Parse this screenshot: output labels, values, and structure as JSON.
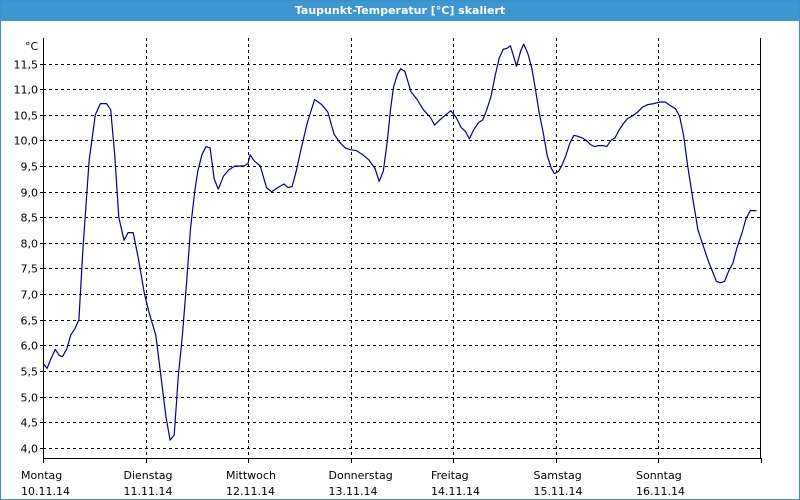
{
  "window": {
    "title": "Taupunkt-Temperatur [°C] skaliert"
  },
  "colors": {
    "titlebar": "#3e96d0",
    "line": "#00008b",
    "grid": "#000000"
  },
  "chart_data": {
    "type": "line",
    "title": "Taupunkt-Temperatur [°C] skaliert",
    "unit": "°C",
    "grid": true,
    "ylim": [
      3.8,
      12.0
    ],
    "y_ticks": [
      "4,0",
      "4,5",
      "5,0",
      "5,5",
      "6,0",
      "6,5",
      "7,0",
      "7,5",
      "8,0",
      "8,5",
      "9,0",
      "9,5",
      "10,0",
      "10,5",
      "11,0",
      "11,5"
    ],
    "y_tick_values": [
      4.0,
      4.5,
      5.0,
      5.5,
      6.0,
      6.5,
      7.0,
      7.5,
      8.0,
      8.5,
      9.0,
      9.5,
      10.0,
      10.5,
      11.0,
      11.5
    ],
    "x_ticks": [
      {
        "day": "Montag",
        "date": "10.11.14"
      },
      {
        "day": "Dienstag",
        "date": "11.11.14"
      },
      {
        "day": "Mittwoch",
        "date": "12.11.14"
      },
      {
        "day": "Donnerstag",
        "date": "13.11.14"
      },
      {
        "day": "Freitag",
        "date": "14.11.14"
      },
      {
        "day": "Samstag",
        "date": "15.11.14"
      },
      {
        "day": "Sonntag",
        "date": "16.11.14"
      }
    ],
    "xlim_days": [
      0,
      7.07
    ],
    "series": [
      {
        "color": "#00008b",
        "points": [
          [
            0.0,
            5.65
          ],
          [
            0.04,
            5.55
          ],
          [
            0.08,
            5.75
          ],
          [
            0.12,
            5.92
          ],
          [
            0.16,
            5.8
          ],
          [
            0.19,
            5.78
          ],
          [
            0.23,
            5.92
          ],
          [
            0.27,
            6.2
          ],
          [
            0.31,
            6.32
          ],
          [
            0.35,
            6.5
          ],
          [
            0.39,
            7.9
          ],
          [
            0.45,
            9.6
          ],
          [
            0.51,
            10.5
          ],
          [
            0.56,
            10.72
          ],
          [
            0.62,
            10.72
          ],
          [
            0.66,
            10.6
          ],
          [
            0.7,
            9.7
          ],
          [
            0.74,
            8.5
          ],
          [
            0.79,
            8.05
          ],
          [
            0.83,
            8.2
          ],
          [
            0.88,
            8.2
          ],
          [
            0.93,
            7.7
          ],
          [
            0.99,
            7.0
          ],
          [
            1.04,
            6.6
          ],
          [
            1.1,
            6.2
          ],
          [
            1.15,
            5.4
          ],
          [
            1.2,
            4.6
          ],
          [
            1.24,
            4.15
          ],
          [
            1.28,
            4.25
          ],
          [
            1.32,
            5.4
          ],
          [
            1.36,
            6.2
          ],
          [
            1.4,
            7.2
          ],
          [
            1.44,
            8.3
          ],
          [
            1.48,
            9.0
          ],
          [
            1.51,
            9.4
          ],
          [
            1.55,
            9.72
          ],
          [
            1.59,
            9.88
          ],
          [
            1.63,
            9.85
          ],
          [
            1.67,
            9.25
          ],
          [
            1.71,
            9.05
          ],
          [
            1.76,
            9.3
          ],
          [
            1.81,
            9.42
          ],
          [
            1.87,
            9.5
          ],
          [
            1.92,
            9.5
          ],
          [
            1.96,
            9.5
          ],
          [
            2.0,
            9.55
          ],
          [
            2.02,
            9.72
          ],
          [
            2.06,
            9.6
          ],
          [
            2.12,
            9.5
          ],
          [
            2.18,
            9.08
          ],
          [
            2.23,
            9.0
          ],
          [
            2.29,
            9.08
          ],
          [
            2.35,
            9.15
          ],
          [
            2.39,
            9.08
          ],
          [
            2.43,
            9.1
          ],
          [
            2.47,
            9.4
          ],
          [
            2.52,
            9.85
          ],
          [
            2.58,
            10.35
          ],
          [
            2.65,
            10.8
          ],
          [
            2.72,
            10.7
          ],
          [
            2.78,
            10.55
          ],
          [
            2.84,
            10.12
          ],
          [
            2.9,
            9.95
          ],
          [
            2.95,
            9.85
          ],
          [
            3.0,
            9.82
          ],
          [
            3.06,
            9.8
          ],
          [
            3.12,
            9.72
          ],
          [
            3.18,
            9.62
          ],
          [
            3.24,
            9.45
          ],
          [
            3.28,
            9.2
          ],
          [
            3.32,
            9.4
          ],
          [
            3.36,
            10.0
          ],
          [
            3.39,
            10.6
          ],
          [
            3.42,
            11.05
          ],
          [
            3.46,
            11.3
          ],
          [
            3.49,
            11.4
          ],
          [
            3.53,
            11.35
          ],
          [
            3.59,
            10.95
          ],
          [
            3.65,
            10.8
          ],
          [
            3.71,
            10.6
          ],
          [
            3.78,
            10.45
          ],
          [
            3.82,
            10.3
          ],
          [
            3.87,
            10.4
          ],
          [
            3.93,
            10.5
          ],
          [
            3.98,
            10.58
          ],
          [
            4.03,
            10.45
          ],
          [
            4.08,
            10.25
          ],
          [
            4.12,
            10.18
          ],
          [
            4.16,
            10.03
          ],
          [
            4.2,
            10.2
          ],
          [
            4.25,
            10.35
          ],
          [
            4.29,
            10.4
          ],
          [
            4.33,
            10.6
          ],
          [
            4.37,
            10.85
          ],
          [
            4.41,
            11.25
          ],
          [
            4.45,
            11.6
          ],
          [
            4.49,
            11.78
          ],
          [
            4.53,
            11.8
          ],
          [
            4.56,
            11.85
          ],
          [
            4.59,
            11.65
          ],
          [
            4.62,
            11.45
          ],
          [
            4.66,
            11.75
          ],
          [
            4.69,
            11.88
          ],
          [
            4.73,
            11.7
          ],
          [
            4.77,
            11.4
          ],
          [
            4.8,
            11.05
          ],
          [
            4.84,
            10.55
          ],
          [
            4.88,
            10.15
          ],
          [
            4.92,
            9.7
          ],
          [
            4.96,
            9.45
          ],
          [
            4.99,
            9.35
          ],
          [
            5.03,
            9.4
          ],
          [
            5.06,
            9.5
          ],
          [
            5.1,
            9.7
          ],
          [
            5.14,
            9.95
          ],
          [
            5.18,
            10.1
          ],
          [
            5.22,
            10.08
          ],
          [
            5.26,
            10.05
          ],
          [
            5.3,
            10.0
          ],
          [
            5.34,
            9.92
          ],
          [
            5.38,
            9.88
          ],
          [
            5.42,
            9.9
          ],
          [
            5.46,
            9.9
          ],
          [
            5.5,
            9.88
          ],
          [
            5.54,
            10.0
          ],
          [
            5.58,
            10.05
          ],
          [
            5.62,
            10.2
          ],
          [
            5.66,
            10.32
          ],
          [
            5.7,
            10.42
          ],
          [
            5.75,
            10.48
          ],
          [
            5.8,
            10.55
          ],
          [
            5.85,
            10.65
          ],
          [
            5.9,
            10.7
          ],
          [
            5.96,
            10.72
          ],
          [
            6.02,
            10.75
          ],
          [
            6.07,
            10.75
          ],
          [
            6.12,
            10.68
          ],
          [
            6.17,
            10.62
          ],
          [
            6.21,
            10.48
          ],
          [
            6.25,
            10.1
          ],
          [
            6.29,
            9.5
          ],
          [
            6.34,
            8.85
          ],
          [
            6.39,
            8.25
          ],
          [
            6.44,
            7.95
          ],
          [
            6.49,
            7.65
          ],
          [
            6.53,
            7.45
          ],
          [
            6.57,
            7.25
          ],
          [
            6.61,
            7.22
          ],
          [
            6.65,
            7.25
          ],
          [
            6.69,
            7.45
          ],
          [
            6.73,
            7.6
          ],
          [
            6.77,
            7.9
          ],
          [
            6.82,
            8.2
          ],
          [
            6.86,
            8.48
          ],
          [
            6.9,
            8.63
          ],
          [
            6.96,
            8.63
          ]
        ]
      }
    ]
  }
}
